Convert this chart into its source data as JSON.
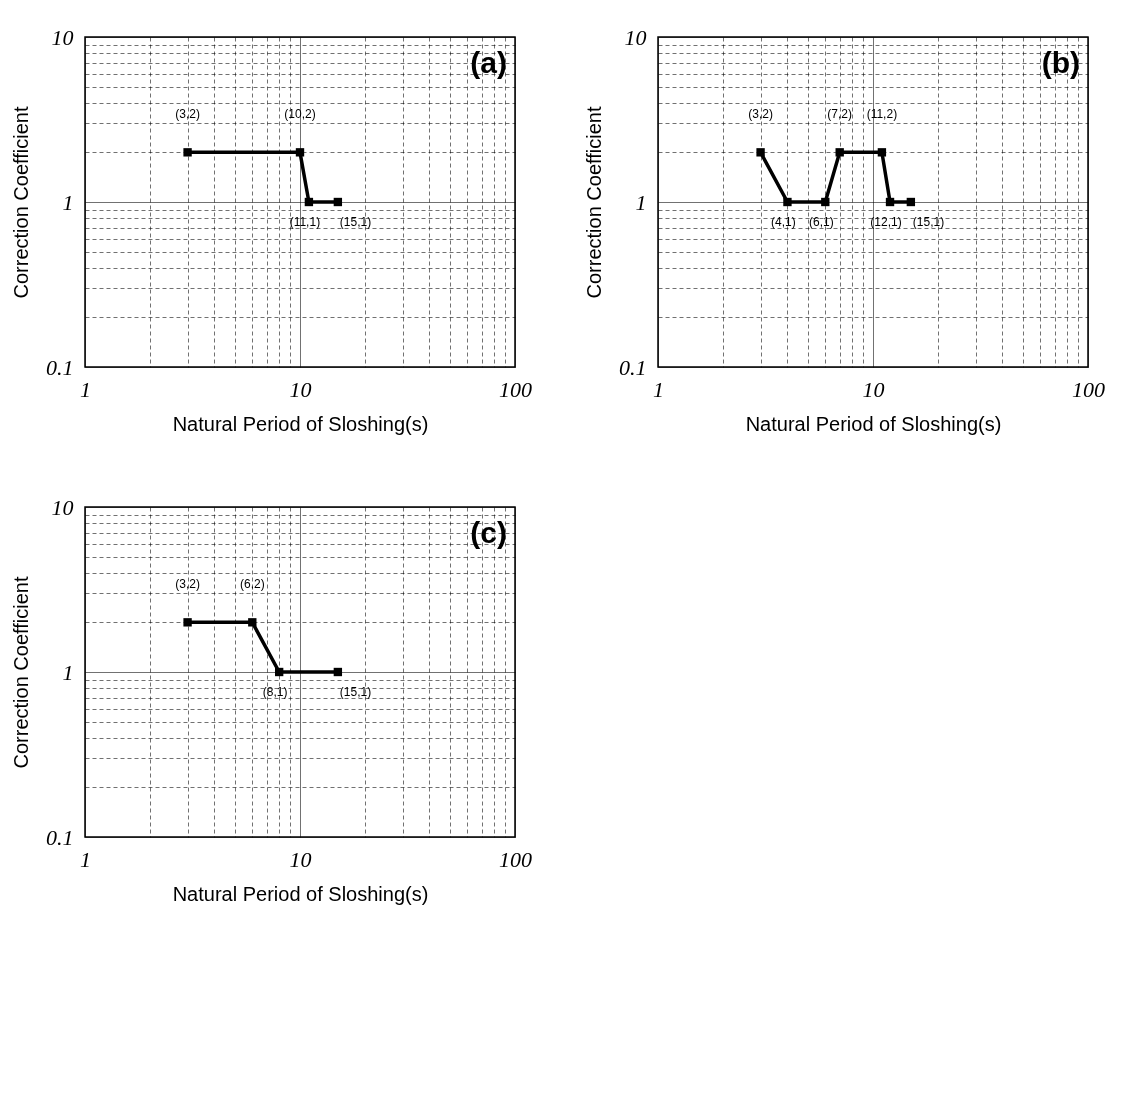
{
  "chart_data": [
    {
      "type": "line",
      "title": "(a)",
      "xlabel": "Natural Period of Sloshing(s)",
      "ylabel": "Correction Coefficient",
      "log": "xy",
      "grid": true,
      "legend": false,
      "marker": "square",
      "line_style": "solid",
      "xlim": [
        1,
        100
      ],
      "ylim": [
        0.1,
        10
      ],
      "xticks": [
        1,
        {
          "value": 2,
          "label": null
        },
        {
          "value": 3,
          "label": null
        },
        {
          "value": 4,
          "label": null
        },
        {
          "value": 5,
          "label": null
        },
        {
          "value": 6,
          "label": null
        },
        {
          "value": 7,
          "label": null
        },
        {
          "value": 8,
          "label": null
        },
        {
          "value": 9,
          "label": null
        },
        10,
        {
          "value": 20,
          "label": null
        },
        {
          "value": 30,
          "label": null
        },
        {
          "value": 40,
          "label": null
        },
        {
          "value": 50,
          "label": null
        },
        {
          "value": 60,
          "label": null
        },
        {
          "value": 70,
          "label": null
        },
        {
          "value": 80,
          "label": null
        },
        {
          "value": 90,
          "label": null
        },
        100
      ],
      "yticks": [
        0.1,
        {
          "value": 0.2,
          "label": null
        },
        {
          "value": 0.3,
          "label": null
        },
        {
          "value": 0.4,
          "label": null
        },
        {
          "value": 0.5,
          "label": null
        },
        {
          "value": 0.6,
          "label": null
        },
        {
          "value": 0.7,
          "label": null
        },
        {
          "value": 0.8,
          "label": null
        },
        {
          "value": 0.9,
          "label": null
        },
        1,
        {
          "value": 2,
          "label": null
        },
        {
          "value": 3,
          "label": null
        },
        {
          "value": 4,
          "label": null
        },
        {
          "value": 5,
          "label": null
        },
        {
          "value": 6,
          "label": null
        },
        {
          "value": 7,
          "label": null
        },
        {
          "value": 8,
          "label": null
        },
        {
          "value": 9,
          "label": null
        },
        10
      ],
      "series": [
        {
          "color": "#000000",
          "x": [
            3,
            10,
            11,
            15
          ],
          "values": [
            2,
            2,
            1,
            1
          ]
        }
      ],
      "annotations": [
        {
          "text": "(3,2)",
          "x": 3,
          "y": 2
        },
        {
          "text": "(10,2)",
          "x": 10,
          "y": 2
        },
        {
          "text": "(11,1)",
          "x": 11,
          "y": 1
        },
        {
          "text": "(15,1)",
          "x": 15,
          "y": 1
        }
      ]
    },
    {
      "type": "line",
      "title": "(b)",
      "xlabel": "Natural Period of Sloshing(s)",
      "ylabel": "Correction Coefficient",
      "log": "xy",
      "grid": true,
      "legend": false,
      "marker": "square",
      "line_style": "solid",
      "xlim": [
        1,
        100
      ],
      "ylim": [
        0.1,
        10
      ],
      "xticks": [
        1,
        {
          "value": 2,
          "label": null
        },
        {
          "value": 3,
          "label": null
        },
        {
          "value": 4,
          "label": null
        },
        {
          "value": 5,
          "label": null
        },
        {
          "value": 6,
          "label": null
        },
        {
          "value": 7,
          "label": null
        },
        {
          "value": 8,
          "label": null
        },
        {
          "value": 9,
          "label": null
        },
        10,
        {
          "value": 20,
          "label": null
        },
        {
          "value": 30,
          "label": null
        },
        {
          "value": 40,
          "label": null
        },
        {
          "value": 50,
          "label": null
        },
        {
          "value": 60,
          "label": null
        },
        {
          "value": 70,
          "label": null
        },
        {
          "value": 80,
          "label": null
        },
        {
          "value": 90,
          "label": null
        },
        100
      ],
      "yticks": [
        0.1,
        {
          "value": 0.2,
          "label": null
        },
        {
          "value": 0.3,
          "label": null
        },
        {
          "value": 0.4,
          "label": null
        },
        {
          "value": 0.5,
          "label": null
        },
        {
          "value": 0.6,
          "label": null
        },
        {
          "value": 0.7,
          "label": null
        },
        {
          "value": 0.8,
          "label": null
        },
        {
          "value": 0.9,
          "label": null
        },
        1,
        {
          "value": 2,
          "label": null
        },
        {
          "value": 3,
          "label": null
        },
        {
          "value": 4,
          "label": null
        },
        {
          "value": 5,
          "label": null
        },
        {
          "value": 6,
          "label": null
        },
        {
          "value": 7,
          "label": null
        },
        {
          "value": 8,
          "label": null
        },
        {
          "value": 9,
          "label": null
        },
        10
      ],
      "series": [
        {
          "color": "#000000",
          "x": [
            3,
            4,
            6,
            7,
            11,
            12,
            15
          ],
          "values": [
            2,
            1,
            1,
            2,
            2,
            1,
            1
          ]
        }
      ],
      "annotations": [
        {
          "text": "(3,2)",
          "x": 3,
          "y": 2
        },
        {
          "text": "(4,1)",
          "x": 4,
          "y": 1
        },
        {
          "text": "(6,1)",
          "x": 6,
          "y": 1
        },
        {
          "text": "(7,2)",
          "x": 7,
          "y": 2
        },
        {
          "text": "(11,2)",
          "x": 11,
          "y": 2
        },
        {
          "text": "(12,1)",
          "x": 12,
          "y": 1
        },
        {
          "text": "(15,1)",
          "x": 15,
          "y": 1
        }
      ]
    },
    {
      "type": "line",
      "title": "(c)",
      "xlabel": "Natural Period of Sloshing(s)",
      "ylabel": "Correction Coefficient",
      "log": "xy",
      "grid": true,
      "legend": false,
      "marker": "square",
      "line_style": "solid",
      "xlim": [
        1,
        100
      ],
      "ylim": [
        0.1,
        10
      ],
      "xticks": [
        1,
        {
          "value": 2,
          "label": null
        },
        {
          "value": 3,
          "label": null
        },
        {
          "value": 4,
          "label": null
        },
        {
          "value": 5,
          "label": null
        },
        {
          "value": 6,
          "label": null
        },
        {
          "value": 7,
          "label": null
        },
        {
          "value": 8,
          "label": null
        },
        {
          "value": 9,
          "label": null
        },
        10,
        {
          "value": 20,
          "label": null
        },
        {
          "value": 30,
          "label": null
        },
        {
          "value": 40,
          "label": null
        },
        {
          "value": 50,
          "label": null
        },
        {
          "value": 60,
          "label": null
        },
        {
          "value": 70,
          "label": null
        },
        {
          "value": 80,
          "label": null
        },
        {
          "value": 90,
          "label": null
        },
        100
      ],
      "yticks": [
        0.1,
        {
          "value": 0.2,
          "label": null
        },
        {
          "value": 0.3,
          "label": null
        },
        {
          "value": 0.4,
          "label": null
        },
        {
          "value": 0.5,
          "label": null
        },
        {
          "value": 0.6,
          "label": null
        },
        {
          "value": 0.7,
          "label": null
        },
        {
          "value": 0.8,
          "label": null
        },
        {
          "value": 0.9,
          "label": null
        },
        1,
        {
          "value": 2,
          "label": null
        },
        {
          "value": 3,
          "label": null
        },
        {
          "value": 4,
          "label": null
        },
        {
          "value": 5,
          "label": null
        },
        {
          "value": 6,
          "label": null
        },
        {
          "value": 7,
          "label": null
        },
        {
          "value": 8,
          "label": null
        },
        {
          "value": 9,
          "label": null
        },
        10
      ],
      "series": [
        {
          "color": "#000000",
          "x": [
            3,
            6,
            8,
            15
          ],
          "values": [
            2,
            2,
            1,
            1
          ]
        }
      ],
      "annotations": [
        {
          "text": "(3,2)",
          "x": 3,
          "y": 2
        },
        {
          "text": "(6,2)",
          "x": 6,
          "y": 2
        },
        {
          "text": "(8,1)",
          "x": 8,
          "y": 1
        },
        {
          "text": "(15,1)",
          "x": 15,
          "y": 1
        }
      ]
    }
  ]
}
